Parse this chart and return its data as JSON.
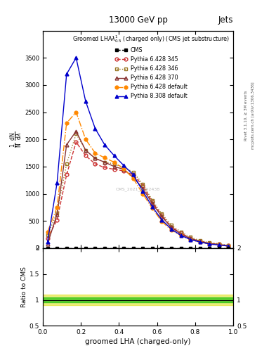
{
  "title_top": "13000 GeV pp",
  "title_right": "Jets",
  "xlabel": "groomed LHA (charged-only)",
  "ylabel_ratio": "Ratio to CMS",
  "right_label": "Rivet 3.1.10, ≥ 3M events",
  "right_label2": "mcplots.cern.ch [arXiv:1306.3436]",
  "watermark": "CMS_2021_1192438",
  "cms_data": {
    "x": [
      0.025,
      0.075,
      0.125,
      0.175,
      0.225,
      0.275,
      0.325,
      0.375,
      0.425,
      0.475,
      0.525,
      0.575,
      0.625,
      0.675,
      0.725,
      0.775,
      0.825,
      0.875,
      0.925,
      0.975
    ],
    "y": [
      0,
      0,
      0,
      0,
      0,
      0,
      0,
      0,
      0,
      0,
      0,
      0,
      0,
      0,
      0,
      0,
      0,
      0,
      0,
      0
    ],
    "color": "black",
    "marker": "s",
    "markersize": 3.5,
    "label": "CMS"
  },
  "pythia_345": {
    "x": [
      0.025,
      0.075,
      0.125,
      0.175,
      0.225,
      0.275,
      0.325,
      0.375,
      0.425,
      0.475,
      0.525,
      0.575,
      0.625,
      0.675,
      0.725,
      0.775,
      0.825,
      0.875,
      0.925,
      0.975
    ],
    "y": [
      180,
      520,
      1350,
      1950,
      1700,
      1550,
      1480,
      1450,
      1420,
      1350,
      1150,
      850,
      600,
      390,
      280,
      180,
      130,
      90,
      70,
      45
    ],
    "color": "#cc3333",
    "linestyle": "--",
    "marker": "o",
    "markerfacecolor": "none",
    "markersize": 3.5,
    "label": "Pythia 6.428 345"
  },
  "pythia_346": {
    "x": [
      0.025,
      0.075,
      0.125,
      0.175,
      0.225,
      0.275,
      0.325,
      0.375,
      0.425,
      0.475,
      0.525,
      0.575,
      0.625,
      0.675,
      0.725,
      0.775,
      0.825,
      0.875,
      0.925,
      0.975
    ],
    "y": [
      240,
      650,
      1550,
      2100,
      1800,
      1650,
      1580,
      1550,
      1480,
      1400,
      1180,
      880,
      630,
      420,
      300,
      200,
      140,
      100,
      80,
      50
    ],
    "color": "#997722",
    "linestyle": ":",
    "marker": "s",
    "markerfacecolor": "none",
    "markersize": 3.5,
    "label": "Pythia 6.428 346"
  },
  "pythia_370": {
    "x": [
      0.025,
      0.075,
      0.125,
      0.175,
      0.225,
      0.275,
      0.325,
      0.375,
      0.425,
      0.475,
      0.525,
      0.575,
      0.625,
      0.675,
      0.725,
      0.775,
      0.825,
      0.875,
      0.925,
      0.975
    ],
    "y": [
      80,
      620,
      1900,
      2150,
      1800,
      1650,
      1580,
      1500,
      1450,
      1300,
      1100,
      820,
      580,
      380,
      260,
      175,
      125,
      85,
      65,
      42
    ],
    "color": "#883333",
    "linestyle": "-",
    "marker": "^",
    "markerfacecolor": "none",
    "markersize": 3.5,
    "label": "Pythia 6.428 370"
  },
  "pythia_default": {
    "x": [
      0.025,
      0.075,
      0.125,
      0.175,
      0.225,
      0.275,
      0.325,
      0.375,
      0.425,
      0.475,
      0.525,
      0.575,
      0.625,
      0.675,
      0.725,
      0.775,
      0.825,
      0.875,
      0.925,
      0.975
    ],
    "y": [
      300,
      750,
      2300,
      2500,
      2000,
      1750,
      1660,
      1580,
      1460,
      1280,
      1000,
      730,
      490,
      330,
      230,
      155,
      110,
      75,
      58,
      38
    ],
    "color": "#ff8800",
    "linestyle": "-.",
    "marker": "o",
    "markerfacecolor": "#ff8800",
    "markersize": 3.5,
    "label": "Pythia 6.428 default"
  },
  "pythia8_default": {
    "x": [
      0.025,
      0.075,
      0.125,
      0.175,
      0.225,
      0.275,
      0.325,
      0.375,
      0.425,
      0.475,
      0.525,
      0.575,
      0.625,
      0.675,
      0.725,
      0.775,
      0.825,
      0.875,
      0.925,
      0.975
    ],
    "y": [
      120,
      1200,
      3200,
      3500,
      2700,
      2200,
      1900,
      1700,
      1520,
      1350,
      1050,
      760,
      520,
      350,
      235,
      158,
      112,
      76,
      57,
      38
    ],
    "color": "#0000cc",
    "linestyle": "-",
    "marker": "^",
    "markerfacecolor": "#0000cc",
    "markersize": 3.5,
    "label": "Pythia 8.308 default"
  },
  "ylim_main": [
    0,
    4000
  ],
  "xlim": [
    0,
    1.0
  ],
  "ylim_ratio": [
    0.5,
    2.0
  ],
  "bg_color": "#ffffff"
}
